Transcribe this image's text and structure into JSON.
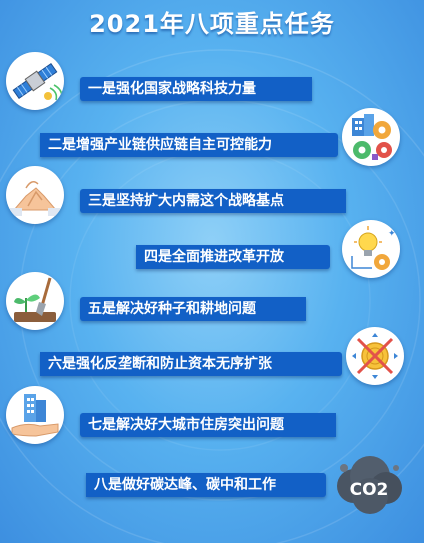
{
  "title": "2021年八项重点任务",
  "tasks": [
    {
      "label": "一是强化国家战略科技力量",
      "icon": "satellite-icon"
    },
    {
      "label": "二是增强产业链供应链自主可控能力",
      "icon": "gears-building-icon"
    },
    {
      "label": "三是坚持扩大内需这个战略基点",
      "icon": "handshake-icon"
    },
    {
      "label": "四是全面推进改革开放",
      "icon": "lightbulb-gear-icon"
    },
    {
      "label": "五是解决好种子和耕地问题",
      "icon": "seedling-shovel-icon"
    },
    {
      "label": "六是强化反垄断和防止资本无序扩张",
      "icon": "crossed-coins-icon"
    },
    {
      "label": "七是解决好大城市住房突出问题",
      "icon": "hand-building-icon"
    },
    {
      "label": "八是做好碳达峰、碳中和工作",
      "icon": "co2-cloud-icon"
    }
  ],
  "co2_label": "CO2"
}
